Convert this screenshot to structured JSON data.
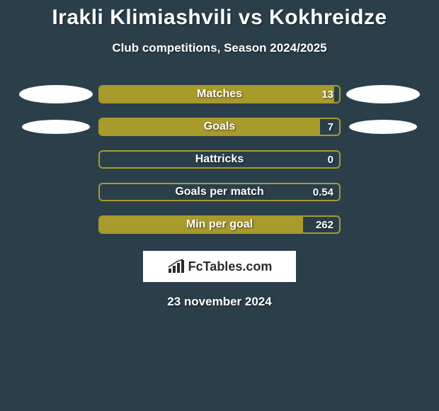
{
  "title": "Irakli Klimiashvili vs Kokhreidze",
  "subtitle": "Club competitions, Season 2024/2025",
  "date": "23 november 2024",
  "logo_text": "FcTables.com",
  "background_color": "#2a3f4a",
  "bar_color": "#a89a2b",
  "bar_border_color": "#a89a2b",
  "text_color": "#ffffff",
  "stats": [
    {
      "label": "Matches",
      "value": "13",
      "fill_pct": 98,
      "left_ellipse": "lg",
      "right_ellipse": "lg"
    },
    {
      "label": "Goals",
      "value": "7",
      "fill_pct": 92,
      "left_ellipse": "sm",
      "right_ellipse": "sm"
    },
    {
      "label": "Hattricks",
      "value": "0",
      "fill_pct": 0,
      "left_ellipse": null,
      "right_ellipse": null
    },
    {
      "label": "Goals per match",
      "value": "0.54",
      "fill_pct": 0,
      "left_ellipse": null,
      "right_ellipse": null
    },
    {
      "label": "Min per goal",
      "value": "262",
      "fill_pct": 85,
      "left_ellipse": null,
      "right_ellipse": null
    }
  ]
}
